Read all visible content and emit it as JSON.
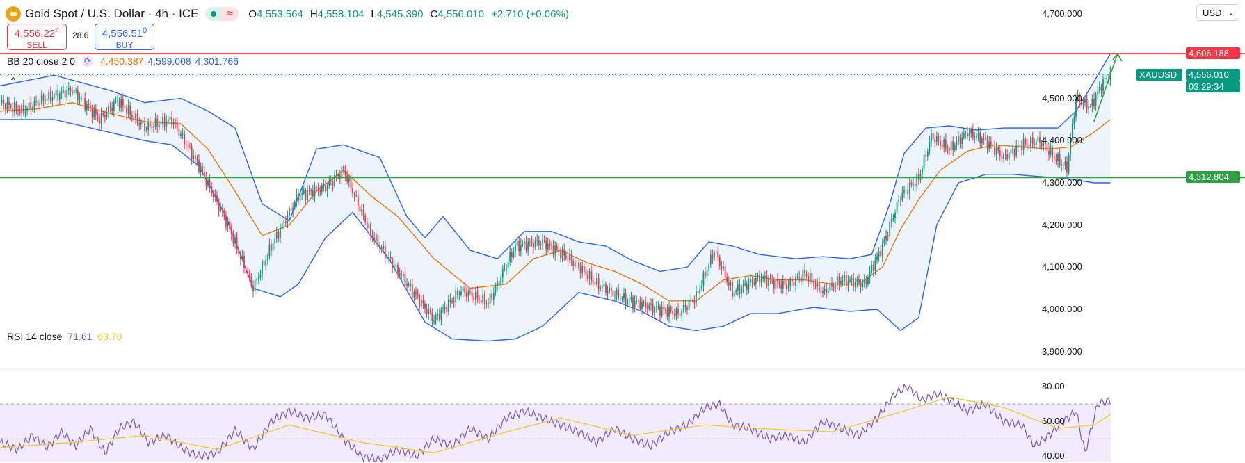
{
  "header": {
    "title": "Gold Spot / U.S. Dollar · 4h · ICE",
    "ohlc": {
      "open_label": "O",
      "open": "4,553.564",
      "high_label": "H",
      "high": "4,558.104",
      "low_label": "L",
      "low": "4,545.390",
      "close_label": "C",
      "close": "4,556.010",
      "change": "+2.710 (+0.06%)"
    },
    "sell": {
      "price_main": "4,556.22",
      "price_small": "4",
      "label": "SELL"
    },
    "buy": {
      "price_main": "4,556.51",
      "price_small": "0",
      "label": "BUY"
    },
    "spread": "28.6",
    "currency": "USD"
  },
  "indicators": {
    "bb": {
      "label": "BB 20 close 2 0",
      "basis": "4,450.387",
      "upper": "4,599.008",
      "lower": "4,301.766"
    },
    "rsi": {
      "label": "RSI 14 close",
      "value": "71.61",
      "ma": "63.70"
    }
  },
  "colors": {
    "up": "#089981",
    "down": "#f23645",
    "bb_band": "#2962ff",
    "bb_basis": "#ef6c00",
    "bb_fill": "#eef4fc",
    "resistance": "#f23645",
    "support": "#2ea043",
    "rsi_line": "#7e57c2",
    "rsi_ma": "#f7c325",
    "rsi_fill": "#f1ecfb"
  },
  "chart_data": [
    {
      "type": "candlestick",
      "symbol": "XAUUSD",
      "title": "Gold Spot / U.S. Dollar · 4h · ICE",
      "ylim": [
        3860,
        4730
      ],
      "y_ticks": [
        "4,700.000",
        "4,500.000",
        "4,400.000",
        "4,300.000",
        "4,200.000",
        "4,100.000",
        "4,000.000",
        "3,900.000"
      ],
      "y_tick_values": [
        4700,
        4500,
        4400,
        4300,
        4200,
        4100,
        4000,
        3900
      ],
      "keypoints": [
        [
          0,
          4490
        ],
        [
          12,
          4470
        ],
        [
          25,
          4500
        ],
        [
          40,
          4520
        ],
        [
          55,
          4450
        ],
        [
          65,
          4495
        ],
        [
          80,
          4430
        ],
        [
          95,
          4450
        ],
        [
          110,
          4340
        ],
        [
          125,
          4210
        ],
        [
          140,
          4050
        ],
        [
          150,
          4150
        ],
        [
          165,
          4270
        ],
        [
          180,
          4290
        ],
        [
          190,
          4330
        ],
        [
          205,
          4180
        ],
        [
          220,
          4090
        ],
        [
          240,
          3975
        ],
        [
          255,
          4045
        ],
        [
          270,
          4015
        ],
        [
          285,
          4150
        ],
        [
          300,
          4160
        ],
        [
          315,
          4120
        ],
        [
          330,
          4060
        ],
        [
          345,
          4025
        ],
        [
          360,
          4005
        ],
        [
          375,
          3990
        ],
        [
          385,
          4030
        ],
        [
          395,
          4140
        ],
        [
          405,
          4040
        ],
        [
          420,
          4075
        ],
        [
          435,
          4055
        ],
        [
          445,
          4085
        ],
        [
          455,
          4040
        ],
        [
          465,
          4070
        ],
        [
          478,
          4060
        ],
        [
          488,
          4150
        ],
        [
          498,
          4270
        ],
        [
          508,
          4310
        ],
        [
          515,
          4410
        ],
        [
          525,
          4380
        ],
        [
          535,
          4420
        ],
        [
          545,
          4400
        ],
        [
          555,
          4360
        ],
        [
          565,
          4390
        ],
        [
          575,
          4400
        ],
        [
          583,
          4360
        ],
        [
          590,
          4335
        ],
        [
          595,
          4500
        ],
        [
          603,
          4480
        ],
        [
          610,
          4540
        ],
        [
          614,
          4556
        ]
      ],
      "bb_upper_keypoints": [
        [
          0,
          4530
        ],
        [
          30,
          4555
        ],
        [
          60,
          4520
        ],
        [
          80,
          4490
        ],
        [
          100,
          4500
        ],
        [
          115,
          4470
        ],
        [
          130,
          4430
        ],
        [
          145,
          4250
        ],
        [
          160,
          4210
        ],
        [
          175,
          4380
        ],
        [
          190,
          4390
        ],
        [
          210,
          4360
        ],
        [
          225,
          4220
        ],
        [
          235,
          4170
        ],
        [
          245,
          4220
        ],
        [
          260,
          4140
        ],
        [
          275,
          4120
        ],
        [
          290,
          4185
        ],
        [
          305,
          4185
        ],
        [
          320,
          4160
        ],
        [
          335,
          4150
        ],
        [
          350,
          4115
        ],
        [
          365,
          4090
        ],
        [
          380,
          4100
        ],
        [
          392,
          4160
        ],
        [
          405,
          4150
        ],
        [
          420,
          4130
        ],
        [
          440,
          4120
        ],
        [
          455,
          4125
        ],
        [
          470,
          4120
        ],
        [
          482,
          4130
        ],
        [
          492,
          4250
        ],
        [
          500,
          4370
        ],
        [
          512,
          4430
        ],
        [
          525,
          4435
        ],
        [
          540,
          4425
        ],
        [
          555,
          4430
        ],
        [
          570,
          4430
        ],
        [
          585,
          4430
        ],
        [
          595,
          4470
        ],
        [
          605,
          4540
        ],
        [
          614,
          4606
        ]
      ],
      "bb_basis_keypoints": [
        [
          0,
          4470
        ],
        [
          20,
          4475
        ],
        [
          40,
          4490
        ],
        [
          60,
          4465
        ],
        [
          80,
          4445
        ],
        [
          100,
          4440
        ],
        [
          115,
          4380
        ],
        [
          130,
          4280
        ],
        [
          145,
          4175
        ],
        [
          160,
          4200
        ],
        [
          175,
          4280
        ],
        [
          190,
          4330
        ],
        [
          205,
          4270
        ],
        [
          220,
          4220
        ],
        [
          240,
          4120
        ],
        [
          260,
          4050
        ],
        [
          280,
          4060
        ],
        [
          295,
          4120
        ],
        [
          310,
          4140
        ],
        [
          325,
          4110
        ],
        [
          340,
          4090
        ],
        [
          355,
          4060
        ],
        [
          370,
          4020
        ],
        [
          385,
          4020
        ],
        [
          400,
          4070
        ],
        [
          415,
          4080
        ],
        [
          430,
          4070
        ],
        [
          445,
          4070
        ],
        [
          460,
          4060
        ],
        [
          475,
          4060
        ],
        [
          488,
          4100
        ],
        [
          498,
          4190
        ],
        [
          508,
          4260
        ],
        [
          520,
          4330
        ],
        [
          535,
          4375
        ],
        [
          550,
          4390
        ],
        [
          565,
          4385
        ],
        [
          580,
          4380
        ],
        [
          592,
          4385
        ],
        [
          605,
          4420
        ],
        [
          614,
          4450
        ]
      ],
      "bb_lower_keypoints": [
        [
          0,
          4450
        ],
        [
          30,
          4450
        ],
        [
          60,
          4420
        ],
        [
          80,
          4400
        ],
        [
          95,
          4390
        ],
        [
          110,
          4340
        ],
        [
          125,
          4220
        ],
        [
          140,
          4050
        ],
        [
          155,
          4030
        ],
        [
          165,
          4060
        ],
        [
          180,
          4170
        ],
        [
          195,
          4230
        ],
        [
          215,
          4120
        ],
        [
          235,
          3970
        ],
        [
          250,
          3930
        ],
        [
          270,
          3925
        ],
        [
          285,
          3930
        ],
        [
          300,
          3960
        ],
        [
          320,
          4040
        ],
        [
          340,
          4020
        ],
        [
          355,
          3995
        ],
        [
          370,
          3960
        ],
        [
          385,
          3950
        ],
        [
          400,
          3960
        ],
        [
          415,
          3990
        ],
        [
          430,
          3990
        ],
        [
          450,
          4005
        ],
        [
          470,
          3995
        ],
        [
          485,
          4000
        ],
        [
          498,
          3950
        ],
        [
          508,
          3980
        ],
        [
          518,
          4200
        ],
        [
          530,
          4300
        ],
        [
          545,
          4320
        ],
        [
          560,
          4320
        ],
        [
          575,
          4315
        ],
        [
          590,
          4310
        ],
        [
          605,
          4300
        ],
        [
          614,
          4300
        ]
      ],
      "lines": [
        {
          "name": "resistance",
          "value": 4606.188,
          "label": "4,606.188"
        },
        {
          "name": "support",
          "value": 4312.804,
          "label": "4,312.804"
        }
      ],
      "last_price": {
        "symbol": "XAUUSD",
        "value": "4,556.010",
        "countdown": "03:29:34"
      },
      "projection": {
        "from": [
          605,
          4445
        ],
        "to": [
          618,
          4606
        ]
      }
    },
    {
      "type": "line",
      "title": "RSI 14 close",
      "ylim": [
        37,
        84
      ],
      "y_ticks": [
        "80.00",
        "60.00",
        "40.00"
      ],
      "y_tick_values": [
        80,
        60,
        40
      ],
      "bands": [
        70,
        50
      ],
      "series": [
        {
          "key": "rsi",
          "keypoints": [
            [
              0,
              48
            ],
            [
              10,
              44
            ],
            [
              18,
              52
            ],
            [
              26,
              45
            ],
            [
              34,
              54
            ],
            [
              42,
              46
            ],
            [
              50,
              56
            ],
            [
              58,
              42
            ],
            [
              66,
              56
            ],
            [
              74,
              60
            ],
            [
              82,
              48
            ],
            [
              92,
              52
            ],
            [
              100,
              45
            ],
            [
              110,
              40
            ],
            [
              120,
              42
            ],
            [
              130,
              55
            ],
            [
              140,
              44
            ],
            [
              150,
              60
            ],
            [
              160,
              66
            ],
            [
              170,
              62
            ],
            [
              180,
              64
            ],
            [
              190,
              50
            ],
            [
              200,
              40
            ],
            [
              210,
              38
            ],
            [
              220,
              44
            ],
            [
              230,
              40
            ],
            [
              240,
              50
            ],
            [
              250,
              46
            ],
            [
              260,
              56
            ],
            [
              270,
              50
            ],
            [
              280,
              62
            ],
            [
              290,
              66
            ],
            [
              300,
              62
            ],
            [
              310,
              58
            ],
            [
              320,
              54
            ],
            [
              330,
              48
            ],
            [
              340,
              56
            ],
            [
              350,
              50
            ],
            [
              360,
              46
            ],
            [
              370,
              54
            ],
            [
              380,
              58
            ],
            [
              390,
              68
            ],
            [
              398,
              70
            ],
            [
              405,
              58
            ],
            [
              415,
              56
            ],
            [
              425,
              50
            ],
            [
              435,
              52
            ],
            [
              445,
              48
            ],
            [
              455,
              60
            ],
            [
              465,
              56
            ],
            [
              475,
              52
            ],
            [
              485,
              62
            ],
            [
              495,
              76
            ],
            [
              502,
              80
            ],
            [
              510,
              72
            ],
            [
              518,
              76
            ],
            [
              526,
              72
            ],
            [
              535,
              66
            ],
            [
              545,
              70
            ],
            [
              555,
              60
            ],
            [
              565,
              58
            ],
            [
              572,
              46
            ],
            [
              580,
              52
            ],
            [
              588,
              60
            ],
            [
              595,
              66
            ],
            [
              600,
              42
            ],
            [
              607,
              70
            ],
            [
              614,
              72
            ]
          ]
        },
        {
          "key": "rsi_ma",
          "keypoints": [
            [
              0,
              45
            ],
            [
              40,
              48
            ],
            [
              80,
              52
            ],
            [
              120,
              44
            ],
            [
              160,
              58
            ],
            [
              200,
              48
            ],
            [
              240,
              42
            ],
            [
              280,
              54
            ],
            [
              310,
              62
            ],
            [
              350,
              52
            ],
            [
              390,
              58
            ],
            [
              420,
              56
            ],
            [
              460,
              54
            ],
            [
              500,
              66
            ],
            [
              525,
              74
            ],
            [
              555,
              68
            ],
            [
              585,
              56
            ],
            [
              605,
              58
            ],
            [
              614,
              64
            ]
          ]
        }
      ]
    }
  ]
}
